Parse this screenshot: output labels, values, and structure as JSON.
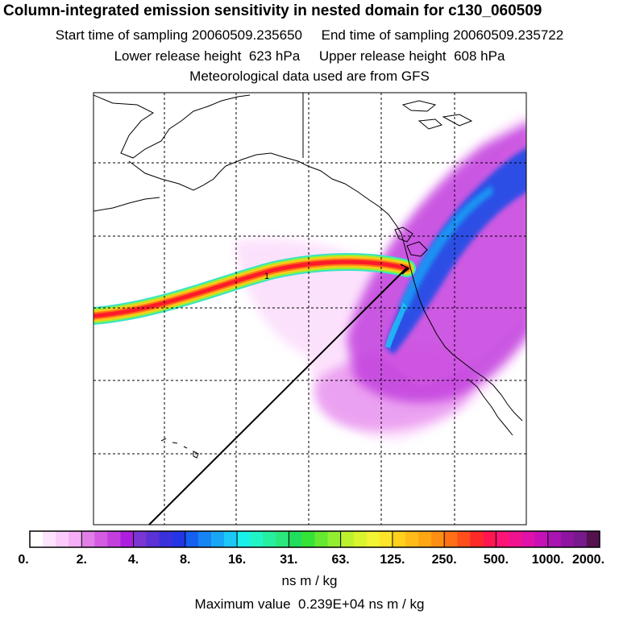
{
  "title": "Column-integrated emission sensitivity in nested domain for c130_060509",
  "start_label": "Start time of sampling 20060509.235650",
  "end_label": "End time of sampling 20060509.235722",
  "lower_label": "Lower release height  623 hPa",
  "upper_label": "Upper release height  608 hPa",
  "met_label": "Meteorological data used are from GFS",
  "trajectory_marker": "1",
  "colorbar": {
    "ticks": [
      "0.",
      "2.",
      "4.",
      "8.",
      "16.",
      "31.",
      "63.",
      "125.",
      "250.",
      "500.",
      "1000.",
      "2000."
    ],
    "colors": [
      "#ffffff",
      "#fde4fd",
      "#fbcbfb",
      "#f6aef6",
      "#e27ee7",
      "#d35ce2",
      "#c23fde",
      "#ad1fdc",
      "#7a35d3",
      "#5a32d6",
      "#3a31dc",
      "#2435e6",
      "#1560f0",
      "#1784f4",
      "#19a6f6",
      "#1bc8f7",
      "#18f0ec",
      "#21f5c8",
      "#27efa0",
      "#2be87c",
      "#21dd5d",
      "#35e236",
      "#64e830",
      "#93ee31",
      "#bcf12f",
      "#d9f52d",
      "#f3f433",
      "#fde528",
      "#ffd01c",
      "#ffbc18",
      "#ffa614",
      "#ff8f12",
      "#ff7016",
      "#ff4d1c",
      "#ff2a28",
      "#ff1650",
      "#ff1375",
      "#f11292",
      "#e011a8",
      "#c511b5",
      "#a815b0",
      "#8e14a2",
      "#761a8c",
      "#55124f"
    ],
    "units": "ns m / kg"
  },
  "max_value": "Maximum value  0.239E+04 ns m / kg",
  "chart_data": {
    "type": "heatmap",
    "title": "Column-integrated emission sensitivity in nested domain for c130_060509",
    "colorbar_levels": [
      0,
      2,
      4,
      8,
      16,
      31,
      63,
      125,
      250,
      500,
      1000,
      2000
    ],
    "units": "ns m / kg",
    "max_value": 2390,
    "release_height_hpa": [
      623,
      608
    ],
    "sampling_window": [
      "20060509.235650",
      "20060509.235722"
    ]
  }
}
